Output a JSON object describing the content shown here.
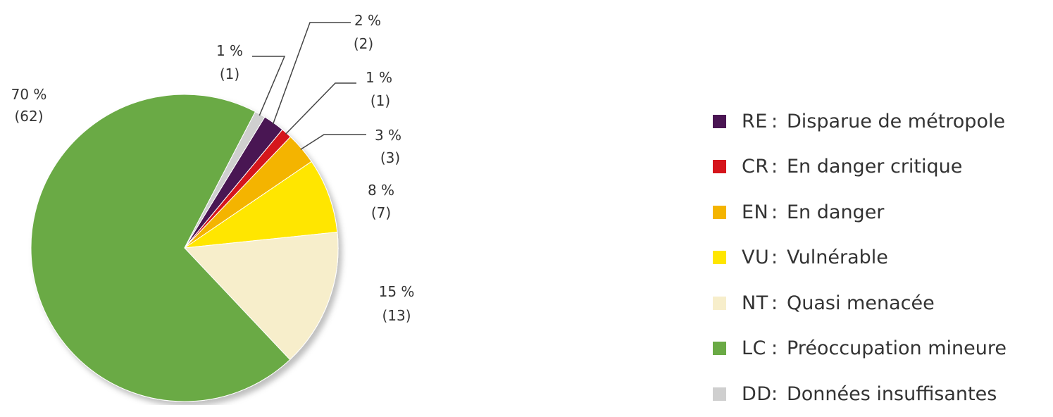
{
  "chart_data": {
    "type": "pie",
    "slices": [
      {
        "code": "RE",
        "label": "Disparue de métropole",
        "pct_label": "2 %",
        "count_label": "(2)",
        "value": 2,
        "color": "#4a1553"
      },
      {
        "code": "CR",
        "label": "En danger critique",
        "pct_label": "1 %",
        "count_label": "(1)",
        "value": 1,
        "color": "#d5141b"
      },
      {
        "code": "EN",
        "label": "En danger",
        "pct_label": "3 %",
        "count_label": "(3)",
        "value": 3,
        "color": "#f4b400"
      },
      {
        "code": "VU",
        "label": "Vulnérable",
        "pct_label": "8 %",
        "count_label": "(7)",
        "value": 7,
        "color": "#ffe600"
      },
      {
        "code": "NT",
        "label": "Quasi menacée",
        "pct_label": "15 %",
        "count_label": "(13)",
        "value": 13,
        "color": "#f7eecb"
      },
      {
        "code": "LC",
        "label": "Préoccupation mineure",
        "pct_label": "70 %",
        "count_label": "(62)",
        "value": 62,
        "color": "#6aaa45"
      },
      {
        "code": "DD",
        "label": "Données insuffisantes",
        "pct_label": "1 %",
        "count_label": "(1)",
        "value": 1,
        "color": "#cfcfcf"
      }
    ],
    "legend_position": "right"
  }
}
